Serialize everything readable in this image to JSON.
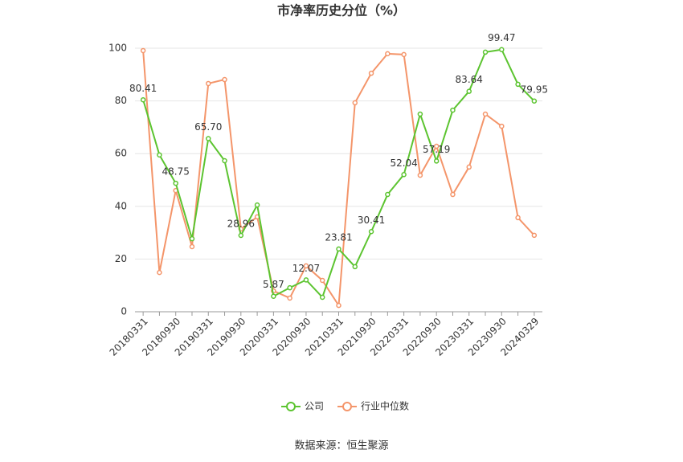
{
  "chart_data": {
    "type": "line",
    "title": "市净率历史分位（%）",
    "categories": [
      "20180331",
      null,
      "20180930",
      null,
      "20190331",
      null,
      "20190930",
      null,
      "20200331",
      null,
      "20200930",
      null,
      "20210331",
      null,
      "20210930",
      null,
      "20220331",
      null,
      "20220930",
      null,
      "20230331",
      null,
      "20230930",
      null,
      "20240329"
    ],
    "series": [
      {
        "name": "公司",
        "color": "#5cc430",
        "values": [
          80.41,
          59.5,
          48.75,
          27.7,
          65.7,
          57.3,
          28.96,
          40.5,
          5.87,
          9.1,
          12.07,
          5.5,
          23.81,
          17.1,
          30.41,
          44.5,
          52.04,
          75.0,
          57.19,
          76.5,
          83.64,
          98.5,
          99.47,
          86.3,
          79.95
        ],
        "value_labels": [
          "80.41",
          null,
          "48.75",
          null,
          "65.70",
          null,
          "28.96",
          null,
          "5.87",
          null,
          "12.07",
          null,
          "23.81",
          null,
          "30.41",
          null,
          "52.04",
          null,
          "57.19",
          null,
          "83.64",
          null,
          "99.47",
          null,
          "79.95"
        ]
      },
      {
        "name": "行业中位数",
        "color": "#f4956a",
        "values": [
          99.1,
          14.9,
          46.0,
          24.7,
          86.6,
          88.1,
          31.4,
          36.0,
          7.9,
          5.2,
          17.4,
          11.9,
          2.4,
          79.3,
          90.5,
          97.9,
          97.6,
          51.8,
          62.8,
          44.5,
          54.9,
          75.0,
          70.4,
          35.7,
          29.0
        ]
      }
    ],
    "ylim": [
      0,
      100
    ],
    "yticks": [
      0,
      20,
      40,
      60,
      80,
      100
    ],
    "grid": true,
    "legend": "bottom",
    "source": "数据来源：恒生聚源"
  }
}
